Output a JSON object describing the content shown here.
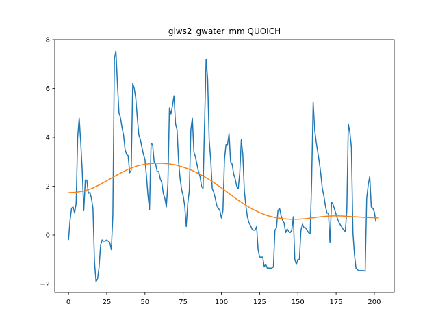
{
  "chart_data": {
    "type": "line",
    "title": "glws2_gwater_mm QUOICH",
    "xlabel": "",
    "ylabel": "",
    "xlim": [
      -9,
      213
    ],
    "ylim": [
      -2.35,
      8
    ],
    "xticks": [
      0,
      25,
      50,
      75,
      100,
      125,
      150,
      175,
      200
    ],
    "yticks": [
      -2,
      0,
      2,
      4,
      6,
      8
    ],
    "grid": false,
    "legend": "none",
    "series": [
      {
        "color": "#1f77b4",
        "points": [
          [
            0,
            -0.2
          ],
          [
            1,
            0.6
          ],
          [
            2,
            1.1
          ],
          [
            3,
            1.15
          ],
          [
            4,
            0.9
          ],
          [
            5,
            1.3
          ],
          [
            6,
            4.0
          ],
          [
            7,
            4.8
          ],
          [
            8,
            3.8
          ],
          [
            9,
            2.6
          ],
          [
            10,
            1.0
          ],
          [
            11,
            2.25
          ],
          [
            12,
            2.25
          ],
          [
            13,
            1.7
          ],
          [
            14,
            1.75
          ],
          [
            15,
            1.5
          ],
          [
            16,
            1.1
          ],
          [
            17,
            -1.1
          ],
          [
            18,
            -1.9
          ],
          [
            19,
            -1.8
          ],
          [
            20,
            -1.3
          ],
          [
            21,
            -0.4
          ],
          [
            22,
            -0.2
          ],
          [
            23,
            -0.25
          ],
          [
            24,
            -0.25
          ],
          [
            25,
            -0.2
          ],
          [
            26,
            -0.25
          ],
          [
            27,
            -0.3
          ],
          [
            28,
            -0.6
          ],
          [
            29,
            0.8
          ],
          [
            30,
            7.2
          ],
          [
            31,
            7.55
          ],
          [
            32,
            6.2
          ],
          [
            33,
            5.0
          ],
          [
            34,
            4.8
          ],
          [
            35,
            4.4
          ],
          [
            36,
            4.1
          ],
          [
            37,
            3.5
          ],
          [
            38,
            3.3
          ],
          [
            39,
            3.25
          ],
          [
            40,
            2.55
          ],
          [
            41,
            2.65
          ],
          [
            42,
            6.2
          ],
          [
            43,
            6.0
          ],
          [
            44,
            5.6
          ],
          [
            45,
            4.8
          ],
          [
            46,
            4.1
          ],
          [
            47,
            3.9
          ],
          [
            48,
            3.6
          ],
          [
            49,
            3.3
          ],
          [
            50,
            3.1
          ],
          [
            51,
            2.4
          ],
          [
            52,
            1.6
          ],
          [
            53,
            1.05
          ],
          [
            54,
            3.75
          ],
          [
            55,
            3.7
          ],
          [
            56,
            3.0
          ],
          [
            57,
            2.9
          ],
          [
            58,
            2.6
          ],
          [
            59,
            2.6
          ],
          [
            60,
            2.3
          ],
          [
            61,
            2.15
          ],
          [
            62,
            1.7
          ],
          [
            63,
            1.5
          ],
          [
            64,
            1.15
          ],
          [
            65,
            2.1
          ],
          [
            66,
            5.2
          ],
          [
            67,
            4.95
          ],
          [
            68,
            5.3
          ],
          [
            69,
            5.7
          ],
          [
            70,
            4.55
          ],
          [
            71,
            4.3
          ],
          [
            72,
            3.0
          ],
          [
            73,
            2.3
          ],
          [
            74,
            1.85
          ],
          [
            75,
            1.6
          ],
          [
            76,
            1.2
          ],
          [
            77,
            0.35
          ],
          [
            78,
            1.3
          ],
          [
            79,
            1.8
          ],
          [
            80,
            4.3
          ],
          [
            81,
            4.8
          ],
          [
            82,
            3.4
          ],
          [
            83,
            3.2
          ],
          [
            84,
            2.9
          ],
          [
            85,
            2.6
          ],
          [
            86,
            2.4
          ],
          [
            87,
            2.0
          ],
          [
            88,
            1.9
          ],
          [
            89,
            4.6
          ],
          [
            90,
            7.2
          ],
          [
            91,
            6.4
          ],
          [
            92,
            3.9
          ],
          [
            93,
            3.1
          ],
          [
            94,
            1.9
          ],
          [
            95,
            1.75
          ],
          [
            96,
            1.5
          ],
          [
            97,
            1.2
          ],
          [
            98,
            1.1
          ],
          [
            99,
            1.0
          ],
          [
            100,
            0.7
          ],
          [
            101,
            1.0
          ],
          [
            102,
            3.1
          ],
          [
            103,
            3.7
          ],
          [
            104,
            3.7
          ],
          [
            105,
            4.15
          ],
          [
            106,
            3.0
          ],
          [
            107,
            2.9
          ],
          [
            108,
            2.5
          ],
          [
            109,
            2.3
          ],
          [
            110,
            2.0
          ],
          [
            111,
            1.9
          ],
          [
            112,
            2.55
          ],
          [
            113,
            3.9
          ],
          [
            114,
            3.3
          ],
          [
            115,
            1.8
          ],
          [
            116,
            1.2
          ],
          [
            117,
            0.75
          ],
          [
            118,
            0.5
          ],
          [
            119,
            0.4
          ],
          [
            120,
            0.25
          ],
          [
            121,
            0.2
          ],
          [
            122,
            0.2
          ],
          [
            123,
            0.35
          ],
          [
            124,
            -0.6
          ],
          [
            125,
            -0.9
          ],
          [
            126,
            -0.9
          ],
          [
            127,
            -0.9
          ],
          [
            128,
            -1.3
          ],
          [
            129,
            -1.2
          ],
          [
            130,
            -1.35
          ],
          [
            131,
            -1.35
          ],
          [
            132,
            -1.35
          ],
          [
            133,
            -1.35
          ],
          [
            134,
            -1.3
          ],
          [
            135,
            0.2
          ],
          [
            136,
            0.3
          ],
          [
            137,
            1.0
          ],
          [
            138,
            1.1
          ],
          [
            139,
            0.8
          ],
          [
            140,
            0.6
          ],
          [
            141,
            0.5
          ],
          [
            142,
            0.1
          ],
          [
            143,
            0.25
          ],
          [
            144,
            0.15
          ],
          [
            145,
            0.1
          ],
          [
            146,
            0.2
          ],
          [
            147,
            0.75
          ],
          [
            148,
            -1.0
          ],
          [
            149,
            -1.2
          ],
          [
            150,
            -1.0
          ],
          [
            151,
            -1.0
          ],
          [
            152,
            0.2
          ],
          [
            153,
            0.45
          ],
          [
            154,
            0.3
          ],
          [
            155,
            0.3
          ],
          [
            156,
            0.2
          ],
          [
            157,
            0.1
          ],
          [
            158,
            0.05
          ],
          [
            159,
            2.2
          ],
          [
            160,
            5.45
          ],
          [
            161,
            4.3
          ],
          [
            162,
            3.8
          ],
          [
            163,
            3.4
          ],
          [
            164,
            3.0
          ],
          [
            165,
            2.5
          ],
          [
            166,
            1.9
          ],
          [
            167,
            1.6
          ],
          [
            168,
            1.2
          ],
          [
            169,
            0.9
          ],
          [
            170,
            0.9
          ],
          [
            171,
            -0.3
          ],
          [
            172,
            1.35
          ],
          [
            173,
            1.25
          ],
          [
            174,
            1.05
          ],
          [
            175,
            0.85
          ],
          [
            176,
            0.65
          ],
          [
            177,
            0.5
          ],
          [
            178,
            0.4
          ],
          [
            179,
            0.3
          ],
          [
            180,
            0.2
          ],
          [
            181,
            0.15
          ],
          [
            182,
            1.0
          ],
          [
            183,
            4.55
          ],
          [
            184,
            4.2
          ],
          [
            185,
            3.6
          ],
          [
            186,
            0.1
          ],
          [
            187,
            -0.8
          ],
          [
            188,
            -1.35
          ],
          [
            189,
            -1.42
          ],
          [
            190,
            -1.45
          ],
          [
            191,
            -1.45
          ],
          [
            192,
            -1.45
          ],
          [
            193,
            -1.45
          ],
          [
            194,
            -1.48
          ],
          [
            195,
            1.5
          ],
          [
            196,
            2.05
          ],
          [
            197,
            2.4
          ],
          [
            198,
            1.15
          ],
          [
            199,
            1.1
          ],
          [
            200,
            0.95
          ],
          [
            201,
            0.55
          ]
        ]
      },
      {
        "color": "#ff7f0e",
        "points": [
          [
            0,
            1.73
          ],
          [
            5,
            1.75
          ],
          [
            10,
            1.8
          ],
          [
            15,
            1.9
          ],
          [
            20,
            2.05
          ],
          [
            25,
            2.22
          ],
          [
            30,
            2.4
          ],
          [
            35,
            2.57
          ],
          [
            40,
            2.72
          ],
          [
            45,
            2.83
          ],
          [
            50,
            2.9
          ],
          [
            55,
            2.93
          ],
          [
            60,
            2.94
          ],
          [
            65,
            2.92
          ],
          [
            70,
            2.87
          ],
          [
            75,
            2.78
          ],
          [
            80,
            2.67
          ],
          [
            85,
            2.52
          ],
          [
            90,
            2.35
          ],
          [
            95,
            2.15
          ],
          [
            100,
            1.93
          ],
          [
            105,
            1.7
          ],
          [
            110,
            1.47
          ],
          [
            115,
            1.26
          ],
          [
            120,
            1.07
          ],
          [
            125,
            0.92
          ],
          [
            130,
            0.8
          ],
          [
            135,
            0.72
          ],
          [
            140,
            0.67
          ],
          [
            145,
            0.65
          ],
          [
            150,
            0.65
          ],
          [
            155,
            0.67
          ],
          [
            160,
            0.71
          ],
          [
            165,
            0.75
          ],
          [
            170,
            0.78
          ],
          [
            175,
            0.79
          ],
          [
            180,
            0.78
          ],
          [
            185,
            0.76
          ],
          [
            190,
            0.74
          ],
          [
            195,
            0.72
          ],
          [
            200,
            0.71
          ],
          [
            203,
            0.7
          ]
        ]
      }
    ]
  }
}
